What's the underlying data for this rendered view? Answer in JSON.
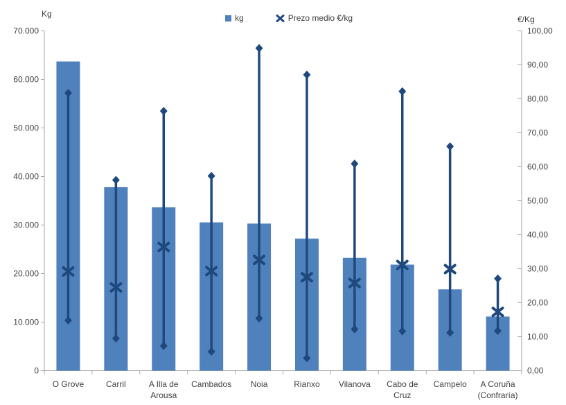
{
  "chart_data": {
    "type": "bar",
    "title": "",
    "grid": false,
    "background": "#ffffff",
    "categories": [
      "O Grove",
      "Carril",
      "A Illa de Arousa",
      "Cambados",
      "Noia",
      "Rianxo",
      "Vilanova",
      "Cabo de Cruz",
      "Campelo",
      "A Coruña (Confraría)"
    ],
    "category_label_lines": [
      [
        "O Grove"
      ],
      [
        "Carril"
      ],
      [
        "A Illa de",
        "Arousa"
      ],
      [
        "Cambados"
      ],
      [
        "Noia"
      ],
      [
        "Rianxo"
      ],
      [
        "Vilanova"
      ],
      [
        "Cabo de",
        "Cruz"
      ],
      [
        "Campelo"
      ],
      [
        "A Coruña",
        "(Confraría)"
      ]
    ],
    "left_axis": {
      "title": "Kg",
      "min": 0,
      "max": 70000,
      "tick_step": 10000,
      "tick_labels": [
        "0",
        "10.000",
        "20.000",
        "30.000",
        "40.000",
        "50.000",
        "60.000",
        "70.000"
      ]
    },
    "right_axis": {
      "title": "€/Kg",
      "min": 0,
      "max": 100,
      "tick_step": 10,
      "tick_labels": [
        "0,00",
        "10,00",
        "20,00",
        "30,00",
        "40,00",
        "50,00",
        "60,00",
        "70,00",
        "80,00",
        "90,00",
        "100,00"
      ]
    },
    "series": [
      {
        "name": "kg",
        "type": "bar",
        "axis": "left",
        "color": "#4f81bd",
        "values": [
          63700,
          37800,
          33650,
          30550,
          30300,
          27200,
          23250,
          21850,
          16750,
          11150
        ]
      },
      {
        "name": "Prezo medio €/kg",
        "type": "x-marker",
        "axis": "right",
        "color": "#1f497d",
        "values": [
          29.2,
          24.5,
          36.4,
          29.3,
          32.6,
          27.5,
          25.8,
          31.1,
          29.9,
          17.3
        ]
      }
    ],
    "price_range": {
      "axis": "right",
      "color": "#1f497d",
      "high": [
        81.7,
        56.1,
        76.4,
        57.3,
        94.9,
        87.1,
        60.9,
        82.2,
        66.0,
        27.1
      ],
      "low": [
        14.8,
        9.5,
        7.3,
        5.6,
        15.4,
        3.7,
        12.2,
        11.6,
        11.2,
        11.7
      ]
    },
    "legend": {
      "position": "top-center",
      "items": [
        {
          "label": "kg",
          "marker": "square",
          "color": "#4f81bd"
        },
        {
          "label": "Prezo medio €/kg",
          "marker": "x",
          "color": "#1f497d"
        }
      ]
    },
    "colors": {
      "bar": "#4f81bd",
      "marker": "#1f497d",
      "axis_line": "#a6a6a6",
      "text": "#404040"
    }
  }
}
